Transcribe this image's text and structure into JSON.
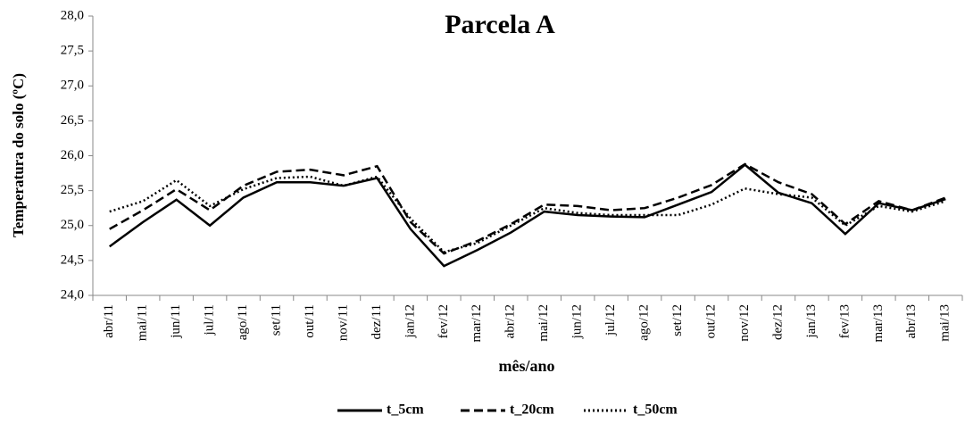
{
  "chart_data": {
    "type": "line",
    "title": "Parcela  A",
    "x_label": "mês/ano",
    "y_label": "Temperatura  do solo (ºC)",
    "categories": [
      "abr/11",
      "mai/11",
      "jun/11",
      "jul/11",
      "ago/11",
      "set/11",
      "out/11",
      "nov/11",
      "dez/11",
      "jan/12",
      "fev/12",
      "mar/12",
      "abr/12",
      "mai/12",
      "jun/12",
      "jul/12",
      "ago/12",
      "set/12",
      "out/12",
      "nov/12",
      "dez/12",
      "jan/13",
      "fev/13",
      "mar/13",
      "abr/13",
      "mai/13"
    ],
    "series": [
      {
        "name": "t_5cm",
        "color": "#000000",
        "line_style": "solid",
        "values": [
          24.7,
          25.05,
          25.37,
          25.0,
          25.4,
          25.62,
          25.62,
          25.57,
          25.68,
          24.95,
          24.42,
          24.65,
          24.9,
          25.2,
          25.15,
          25.13,
          25.12,
          25.3,
          25.48,
          25.87,
          25.47,
          25.32,
          24.88,
          25.32,
          25.22,
          25.38
        ]
      },
      {
        "name": "t_20cm",
        "color": "#000000",
        "line_style": "dashed",
        "values": [
          24.95,
          25.22,
          25.52,
          25.22,
          25.57,
          25.77,
          25.8,
          25.72,
          25.85,
          25.05,
          24.6,
          24.78,
          25.02,
          25.3,
          25.28,
          25.22,
          25.25,
          25.4,
          25.58,
          25.88,
          25.62,
          25.45,
          25.02,
          25.35,
          25.22,
          25.4
        ]
      },
      {
        "name": "t_50cm",
        "color": "#000000",
        "line_style": "dotted",
        "values": [
          25.2,
          25.35,
          25.65,
          25.28,
          25.52,
          25.68,
          25.7,
          25.57,
          25.7,
          25.1,
          24.62,
          24.75,
          25.0,
          25.25,
          25.18,
          25.15,
          25.15,
          25.15,
          25.3,
          25.53,
          25.45,
          25.4,
          25.0,
          25.28,
          25.2,
          25.35
        ]
      }
    ],
    "ylim": [
      24,
      28
    ],
    "yticks": [
      {
        "value": 24,
        "label": "24,0"
      },
      {
        "value": 24.5,
        "label": "24,5"
      },
      {
        "value": 25,
        "label": "25,0"
      },
      {
        "value": 25.5,
        "label": "25,5"
      },
      {
        "value": 26,
        "label": "26,0"
      },
      {
        "value": 26.5,
        "label": "26,5"
      },
      {
        "value": 27,
        "label": "27,0"
      },
      {
        "value": 27.5,
        "label": "27,5"
      },
      {
        "value": 28,
        "label": "28,0"
      }
    ],
    "grid": false,
    "legend": "bottom"
  }
}
